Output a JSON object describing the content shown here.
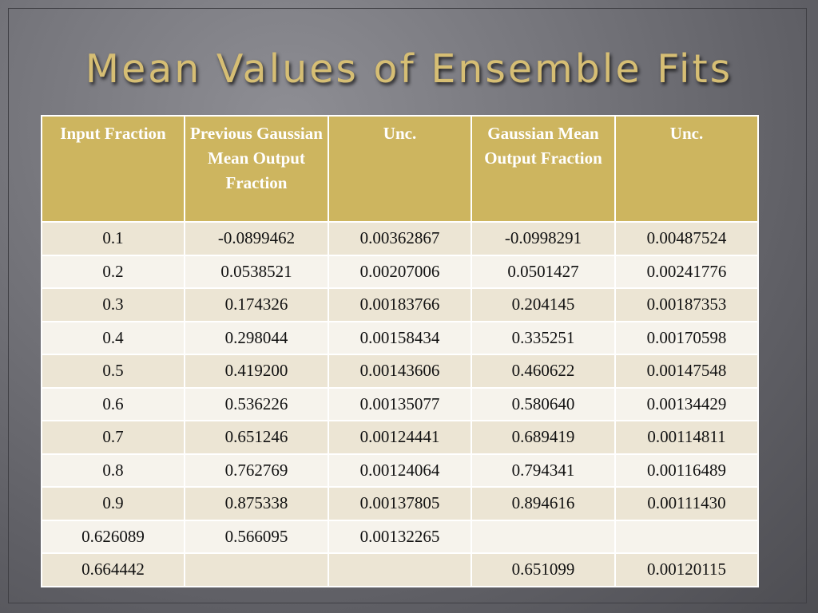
{
  "slide": {
    "title": "Mean Values of Ensemble Fits"
  },
  "table": {
    "headers": [
      "Input Fraction",
      "Previous Gaussian Mean Output Fraction",
      "Unc.",
      "Gaussian Mean Output Fraction",
      "Unc."
    ],
    "rows": [
      [
        "0.1",
        "-0.0899462",
        "0.00362867",
        "-0.0998291",
        "0.00487524"
      ],
      [
        "0.2",
        "0.0538521",
        "0.00207006",
        "0.0501427",
        "0.00241776"
      ],
      [
        "0.3",
        "0.174326",
        "0.00183766",
        "0.204145",
        "0.00187353"
      ],
      [
        "0.4",
        "0.298044",
        "0.00158434",
        "0.335251",
        "0.00170598"
      ],
      [
        "0.5",
        "0.419200",
        "0.00143606",
        "0.460622",
        "0.00147548"
      ],
      [
        "0.6",
        "0.536226",
        "0.00135077",
        "0.580640",
        "0.00134429"
      ],
      [
        "0.7",
        "0.651246",
        "0.00124441",
        "0.689419",
        "0.00114811"
      ],
      [
        "0.8",
        "0.762769",
        "0.00124064",
        "0.794341",
        "0.00116489"
      ],
      [
        "0.9",
        "0.875338",
        "0.00137805",
        "0.894616",
        "0.00111430"
      ],
      [
        "0.626089",
        "0.566095",
        "0.00132265",
        "",
        ""
      ],
      [
        "0.664442",
        "",
        "",
        "0.651099",
        "0.00120115"
      ]
    ]
  },
  "colors": {
    "title": "#d6be74",
    "header_bg": "#cdb55f",
    "row_odd": "#ece5d4",
    "row_even": "#f6f3ec",
    "background": "#77777d"
  }
}
